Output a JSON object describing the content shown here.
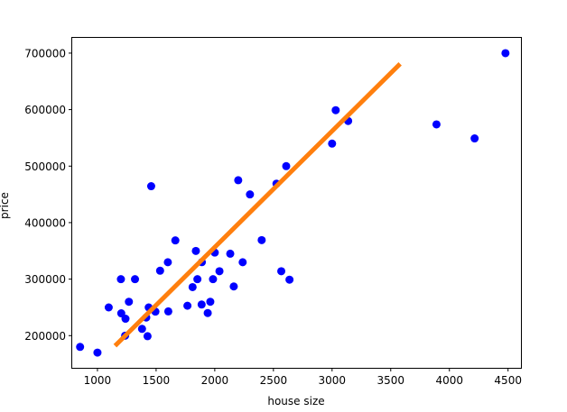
{
  "chart_data": {
    "type": "scatter",
    "xlabel": "house size",
    "ylabel": "price",
    "xlim": [
      785,
      4610
    ],
    "ylim": [
      143000,
      727000
    ],
    "x_ticks": [
      1000,
      1500,
      2000,
      2500,
      3000,
      3500,
      4000,
      4500
    ],
    "y_ticks": [
      200000,
      300000,
      400000,
      500000,
      600000,
      700000
    ],
    "grid": false,
    "legend": "none",
    "colors": {
      "points": "#0000ff",
      "fit_line": "#ff7f0e"
    },
    "series": [
      {
        "kind": "scatter",
        "points": [
          [
            852,
            180000
          ],
          [
            1000,
            170000
          ],
          [
            1096,
            249900
          ],
          [
            1200,
            299900
          ],
          [
            1203,
            239500
          ],
          [
            1236,
            199900
          ],
          [
            1239,
            229900
          ],
          [
            1268,
            259900
          ],
          [
            1320,
            299900
          ],
          [
            1380,
            212000
          ],
          [
            1427,
            198999
          ],
          [
            1437,
            249900
          ],
          [
            1416,
            232000
          ],
          [
            1458,
            464500
          ],
          [
            1494,
            242500
          ],
          [
            1534,
            314900
          ],
          [
            1600,
            329900
          ],
          [
            1604,
            242900
          ],
          [
            1664,
            368500
          ],
          [
            1767,
            252900
          ],
          [
            1811,
            285900
          ],
          [
            1839,
            349900
          ],
          [
            1852,
            299900
          ],
          [
            1888,
            255000
          ],
          [
            1890,
            329999
          ],
          [
            1940,
            239999
          ],
          [
            1962,
            259900
          ],
          [
            1985,
            299900
          ],
          [
            2000,
            347000
          ],
          [
            2040,
            314000
          ],
          [
            2132,
            345000
          ],
          [
            2162,
            287000
          ],
          [
            2200,
            475000
          ],
          [
            2238,
            329900
          ],
          [
            2300,
            449900
          ],
          [
            2400,
            369000
          ],
          [
            2526,
            469000
          ],
          [
            2567,
            314000
          ],
          [
            2609,
            499998
          ],
          [
            2637,
            299000
          ],
          [
            3000,
            539900
          ],
          [
            3031,
            599000
          ],
          [
            3137,
            579900
          ],
          [
            3890,
            573900
          ],
          [
            4215,
            549000
          ],
          [
            4478,
            699900
          ]
        ]
      },
      {
        "kind": "line",
        "points": [
          [
            1150,
            182000
          ],
          [
            3580,
            681000
          ]
        ]
      }
    ]
  }
}
